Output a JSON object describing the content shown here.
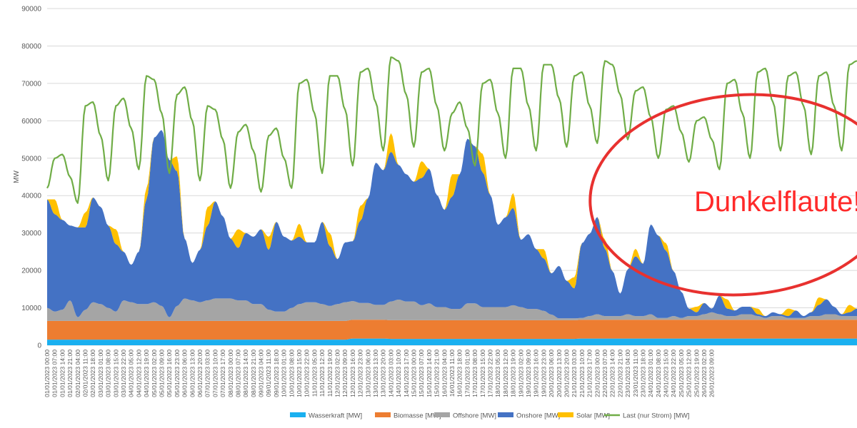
{
  "chart_data": {
    "type": "area",
    "stacked": true,
    "ylabel": "MW",
    "ylim": [
      0,
      90000
    ],
    "yticks": [
      0,
      10000,
      20000,
      30000,
      40000,
      50000,
      60000,
      70000,
      80000,
      90000
    ],
    "grid": true,
    "legend_position": "bottom",
    "annotation": "Dunkelflaute!",
    "x_labels": [
      "01/01/2023 00:00",
      "01/01/2023 07:00",
      "01/01/2023 14:00",
      "01/01/2023 21:00",
      "02/01/2023 04:00",
      "02/01/2023 11:00",
      "02/01/2023 18:00",
      "03/01/2023 01:00",
      "03/01/2023 08:00",
      "03/01/2023 15:00",
      "03/01/2023 22:00",
      "04/01/2023 05:00",
      "04/01/2023 12:00",
      "04/01/2023 19:00",
      "05/01/2023 02:00",
      "05/01/2023 09:00",
      "05/01/2023 16:00",
      "05/01/2023 23:00",
      "06/01/2023 06:00",
      "06/01/2023 13:00",
      "06/01/2023 20:00",
      "07/01/2023 03:00",
      "07/01/2023 10:00",
      "07/01/2023 17:00",
      "08/01/2023 00:00",
      "08/01/2023 07:00",
      "08/01/2023 14:00",
      "08/01/2023 21:00",
      "09/01/2023 04:00",
      "09/01/2023 11:00",
      "09/01/2023 18:00",
      "10/01/2023 01:00",
      "10/01/2023 08:00",
      "10/01/2023 15:00",
      "10/01/2023 22:00",
      "11/01/2023 05:00",
      "11/01/2023 12:00",
      "11/01/2023 19:00",
      "12/01/2023 02:00",
      "12/01/2023 09:00",
      "12/01/2023 16:00",
      "12/01/2023 23:00",
      "13/01/2023 06:00",
      "13/01/2023 13:00",
      "13/01/2023 20:00",
      "14/01/2023 03:00",
      "14/01/2023 10:00",
      "14/01/2023 17:00",
      "15/01/2023 00:00",
      "15/01/2023 07:00",
      "15/01/2023 14:00",
      "15/01/2023 21:00",
      "16/01/2023 04:00",
      "16/01/2023 11:00",
      "16/01/2023 18:00",
      "17/01/2023 01:00",
      "17/01/2023 08:00",
      "17/01/2023 15:00",
      "17/01/2023 22:00",
      "18/01/2023 05:00",
      "18/01/2023 12:00",
      "18/01/2023 19:00",
      "19/01/2023 02:00",
      "19/01/2023 09:00",
      "19/01/2023 16:00",
      "19/01/2023 23:00",
      "20/01/2023 06:00",
      "20/01/2023 13:00",
      "20/01/2023 20:00",
      "21/01/2023 03:00",
      "21/01/2023 10:00",
      "21/01/2023 17:00",
      "22/01/2023 00:00",
      "22/01/2023 07:00",
      "22/01/2023 14:00",
      "22/01/2023 21:00",
      "23/01/2023 04:00",
      "23/01/2023 11:00",
      "23/01/2023 18:00",
      "24/01/2023 01:00",
      "24/01/2023 08:00",
      "24/01/2023 15:00",
      "24/01/2023 22:00",
      "25/01/2023 05:00",
      "25/01/2023 12:00",
      "25/01/2023 19:00",
      "26/01/2023 02:00",
      "26/01/2023 09:00"
    ],
    "x_values_days": [
      0,
      0.25,
      0.5,
      0.75,
      1,
      1.25,
      1.5,
      1.75,
      2,
      2.25,
      2.5,
      2.75,
      3,
      3.25,
      3.5,
      3.75,
      4,
      4.25,
      4.5,
      4.75,
      5,
      5.25,
      5.5,
      5.75,
      6,
      6.25,
      6.5,
      6.75,
      7,
      7.25,
      7.5,
      7.75,
      8,
      8.25,
      8.5,
      8.75,
      9,
      9.25,
      9.5,
      9.75,
      10,
      10.25,
      10.5,
      10.75,
      11,
      11.25,
      11.5,
      11.75,
      12,
      12.25,
      12.5,
      12.75,
      13,
      13.25,
      13.5,
      13.75,
      14,
      14.25,
      14.5,
      14.75,
      15,
      15.25,
      15.5,
      15.75,
      16,
      16.25,
      16.5,
      16.75,
      17,
      17.25,
      17.5,
      17.75,
      18,
      18.25,
      18.5,
      18.75,
      19,
      19.25,
      19.5,
      19.75,
      20,
      20.25,
      20.5,
      20.75,
      21,
      21.25,
      21.5,
      21.75,
      22,
      22.25,
      22.5,
      22.75,
      23,
      23.25,
      23.5,
      23.75,
      24,
      24.25,
      24.5,
      24.75,
      25,
      25.25,
      25.5,
      25.75,
      26,
      26.25,
      26.5
    ],
    "stack_totals_note": "series values are per-series contributions in MW at each x_values_days point",
    "series": [
      {
        "name": "Wasserkraft [MW]",
        "color": "#1ab0f0",
        "kind": "area",
        "values": [
          1500,
          1500,
          1500,
          1500,
          1500,
          1500,
          1500,
          1500,
          1500,
          1500,
          1500,
          1500,
          1500,
          1500,
          1500,
          1500,
          1500,
          1500,
          1500,
          1500,
          1500,
          1500,
          1500,
          1500,
          1500,
          1500,
          1500,
          1500,
          1500,
          1500,
          1500,
          1500,
          1500,
          1500,
          1500,
          1500,
          1500,
          1500,
          1500,
          1500,
          1800,
          1800,
          1800,
          1800,
          1800,
          1700,
          1700,
          1700,
          1700,
          1700,
          1700,
          1700,
          1700,
          1700,
          1700,
          1700,
          1700,
          1700,
          1700,
          1700,
          1700,
          1700,
          1700,
          1700,
          1700,
          1700,
          1700,
          1700,
          1700,
          1700,
          1800,
          1800,
          1800,
          1800,
          1800,
          1800,
          1800,
          1800,
          1800,
          1800,
          1800,
          1800,
          1800,
          1800,
          1800,
          1800,
          1800,
          1800,
          1800,
          1800,
          1800,
          1800,
          1800,
          1800,
          1800,
          1800,
          1800,
          1800,
          1800,
          1800,
          1800,
          1800,
          1800,
          1800,
          1800,
          1800,
          1800
        ]
      },
      {
        "name": "Biomasse [MW]",
        "color": "#ed7d31",
        "kind": "area",
        "values": [
          5000,
          5000,
          5000,
          5000,
          5000,
          5000,
          5000,
          5000,
          5000,
          5000,
          5000,
          5000,
          5000,
          5000,
          5000,
          5000,
          5000,
          5000,
          5000,
          5000,
          5000,
          5000,
          5000,
          5000,
          5000,
          5000,
          5000,
          5000,
          5000,
          5000,
          5000,
          5000,
          5000,
          5000,
          5000,
          5000,
          5000,
          5000,
          5000,
          5000,
          5000,
          5000,
          5000,
          5000,
          5000,
          5000,
          5000,
          5000,
          5000,
          5000,
          5000,
          5000,
          5000,
          5000,
          5000,
          5000,
          5000,
          5000,
          5000,
          5000,
          5000,
          5000,
          5000,
          5000,
          5000,
          5000,
          5000,
          5000,
          5000,
          5000,
          5000,
          5000,
          5000,
          5000,
          5000,
          5000,
          5000,
          5000,
          5000,
          5000,
          5000,
          5000,
          5000,
          5000,
          5000,
          5000,
          5000,
          5000,
          5000,
          5000,
          5000,
          5000,
          5000,
          5000,
          5000,
          5000,
          5000,
          5000,
          5000,
          5000,
          5000,
          5000,
          5000,
          5000,
          5000,
          5000,
          5000
        ]
      },
      {
        "name": "Offshore [MW]",
        "color": "#a5a5a5",
        "kind": "area",
        "values": [
          3500,
          2500,
          3000,
          5500,
          1000,
          3000,
          5000,
          4500,
          3500,
          2500,
          5500,
          5000,
          4500,
          4500,
          5000,
          4000,
          1000,
          4000,
          6000,
          5500,
          5000,
          5500,
          6000,
          6000,
          6000,
          5500,
          5500,
          4500,
          4500,
          3000,
          2500,
          2500,
          3500,
          4500,
          5000,
          5000,
          4500,
          4000,
          4500,
          5000,
          5000,
          4500,
          4500,
          4000,
          4000,
          5000,
          5500,
          5000,
          5000,
          4000,
          4500,
          3500,
          3500,
          3000,
          3000,
          4500,
          4500,
          3500,
          3500,
          3500,
          3500,
          4000,
          3500,
          3000,
          3000,
          2500,
          1500,
          500,
          500,
          500,
          500,
          1000,
          1500,
          1000,
          1000,
          1000,
          1500,
          1000,
          1000,
          1500,
          500,
          500,
          1000,
          500,
          1000,
          1000,
          1500,
          2000,
          1500,
          1000,
          1000,
          1500,
          1500,
          1000,
          500,
          1000,
          1000,
          500,
          500,
          500,
          1000,
          1000,
          1500,
          1500,
          1000,
          1000,
          1000
        ]
      },
      {
        "name": "Onshore [MW]",
        "color": "#4472c4",
        "kind": "area",
        "values": [
          29000,
          26000,
          24000,
          20000,
          24000,
          22000,
          28000,
          26000,
          22000,
          18000,
          13000,
          10000,
          14000,
          28000,
          44000,
          47000,
          42000,
          36000,
          16000,
          10000,
          14000,
          20000,
          26000,
          22000,
          16000,
          14000,
          18000,
          18000,
          20000,
          16000,
          24000,
          20000,
          18000,
          18000,
          16000,
          16000,
          22000,
          16000,
          12000,
          16000,
          16000,
          22000,
          28000,
          38000,
          36000,
          40000,
          36000,
          34000,
          32000,
          34000,
          36000,
          30000,
          26000,
          30000,
          36000,
          44000,
          42000,
          36000,
          30000,
          22000,
          24000,
          26000,
          18000,
          20000,
          16000,
          14000,
          11000,
          14000,
          10000,
          8000,
          20000,
          22000,
          26000,
          18000,
          12000,
          6000,
          12000,
          16000,
          14000,
          24000,
          22000,
          18000,
          12000,
          7000,
          2000,
          1000,
          3000,
          1000,
          5000,
          2000,
          1500,
          2000,
          2000,
          500,
          500,
          1000,
          500,
          500,
          2000,
          500,
          1000,
          3000,
          4000,
          2000,
          500,
          1000,
          2000
        ]
      },
      {
        "name": "Solar [MW]",
        "color": "#ffc000",
        "kind": "area",
        "values": [
          0,
          4000,
          0,
          0,
          0,
          4000,
          0,
          0,
          0,
          4000,
          0,
          0,
          0,
          3000,
          0,
          0,
          0,
          4000,
          0,
          0,
          0,
          5000,
          0,
          0,
          0,
          5000,
          0,
          0,
          0,
          3500,
          0,
          0,
          0,
          3500,
          0,
          0,
          0,
          3500,
          0,
          0,
          0,
          4000,
          0,
          0,
          0,
          5000,
          0,
          0,
          0,
          4500,
          0,
          0,
          0,
          6000,
          0,
          0,
          0,
          5000,
          0,
          0,
          0,
          4000,
          0,
          0,
          0,
          2500,
          0,
          0,
          0,
          3000,
          0,
          0,
          0,
          2500,
          0,
          0,
          0,
          2000,
          0,
          0,
          0,
          2000,
          0,
          0,
          0,
          1500,
          0,
          0,
          0,
          2500,
          0,
          0,
          0,
          1500,
          0,
          0,
          0,
          2000,
          0,
          0,
          0,
          2000,
          0,
          0,
          0,
          2000,
          0
        ]
      },
      {
        "name": "Last (nur Strom) [MW]",
        "color": "#70ad47",
        "kind": "line",
        "values": [
          42000,
          50000,
          51000,
          45000,
          38000,
          64000,
          65000,
          56000,
          44000,
          64000,
          66000,
          58000,
          47000,
          72000,
          71000,
          62000,
          46000,
          67000,
          69000,
          60000,
          44000,
          64000,
          63000,
          55000,
          42000,
          57000,
          59000,
          52000,
          41000,
          56000,
          58000,
          50000,
          42000,
          70000,
          71000,
          62000,
          46000,
          72000,
          72000,
          63000,
          48000,
          73000,
          74000,
          65000,
          52000,
          77000,
          76000,
          67000,
          53000,
          73000,
          74000,
          64000,
          52000,
          62000,
          65000,
          58000,
          48000,
          70000,
          71000,
          62000,
          50000,
          74000,
          74000,
          64000,
          52000,
          75000,
          75000,
          66000,
          53000,
          72000,
          73000,
          64000,
          54000,
          76000,
          75000,
          67000,
          55000,
          68000,
          69000,
          61000,
          50000,
          63000,
          64000,
          57000,
          49000,
          60000,
          61000,
          55000,
          47000,
          70000,
          71000,
          62000,
          50000,
          73000,
          74000,
          65000,
          52000,
          72000,
          73000,
          64000,
          51000,
          72000,
          73000,
          64000,
          52000,
          75000,
          76000
        ]
      }
    ],
    "legend": [
      "Wasserkraft [MW]",
      "Biomasse [MW]",
      "Offshore [MW]",
      "Onshore [MW]",
      "Solar [MW]",
      "Last (nur Strom) [MW]"
    ]
  }
}
